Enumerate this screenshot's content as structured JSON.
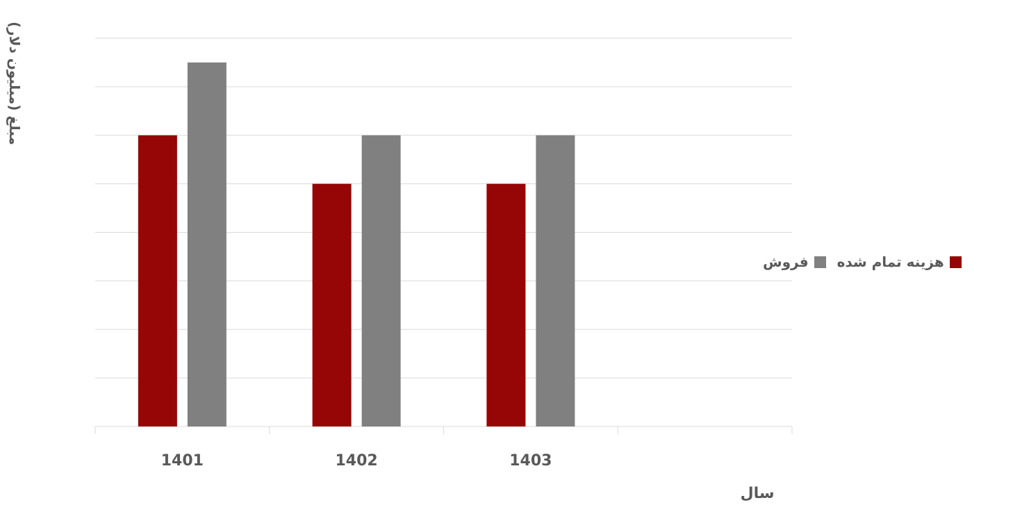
{
  "chart_data": {
    "type": "bar",
    "categories": [
      "1401",
      "1402",
      "1403",
      ""
    ],
    "series": [
      {
        "name": "هزینه تمام شده",
        "color": "#960606",
        "values": [
          6,
          5,
          5,
          null
        ]
      },
      {
        "name": "فروش",
        "color": "#808080",
        "values": [
          7.5,
          6,
          6,
          null
        ]
      }
    ],
    "xlabel": "سال",
    "ylabel": "مبلغ (میلیون دلار)",
    "ylim": [
      0,
      8
    ],
    "grid": true,
    "legend_position": "right"
  }
}
